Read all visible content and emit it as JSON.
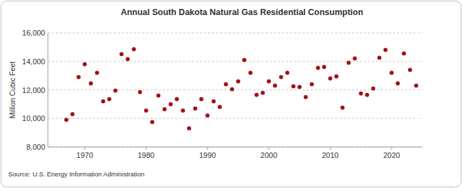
{
  "chart_data": {
    "type": "scatter",
    "title": "Annual South Dakota Natural Gas Residential Consumption",
    "y_label": "Million Cubic Feet",
    "source": "Source: U.S. Energy Information Administration",
    "x": [
      1967,
      1968,
      1969,
      1970,
      1971,
      1972,
      1973,
      1974,
      1975,
      1976,
      1977,
      1978,
      1979,
      1980,
      1981,
      1982,
      1983,
      1984,
      1985,
      1986,
      1987,
      1988,
      1989,
      1990,
      1991,
      1992,
      1993,
      1994,
      1995,
      1996,
      1997,
      1998,
      1999,
      2000,
      2001,
      2002,
      2003,
      2004,
      2005,
      2006,
      2007,
      2008,
      2009,
      2010,
      2011,
      2012,
      2013,
      2014,
      2015,
      2016,
      2017,
      2018,
      2019,
      2020,
      2021,
      2022,
      2023,
      2024
    ],
    "values": [
      9900,
      10300,
      12900,
      13800,
      12450,
      13200,
      11200,
      11350,
      11950,
      14500,
      14150,
      14850,
      11850,
      10550,
      9750,
      11600,
      10650,
      11000,
      11350,
      10550,
      9300,
      10700,
      11350,
      10200,
      11200,
      10800,
      12400,
      12050,
      12600,
      14100,
      13200,
      11650,
      11800,
      12600,
      12300,
      12900,
      13200,
      12250,
      12200,
      11500,
      12400,
      13550,
      13600,
      12800,
      12950,
      10750,
      13900,
      14200,
      11750,
      11650,
      12100,
      14250,
      14800,
      13200,
      12450,
      14550,
      13400,
      12300
    ],
    "color": "#a50f15",
    "marker": "circle",
    "xlim": [
      1964,
      2025
    ],
    "xticks": [
      1970,
      1980,
      1990,
      2000,
      2010,
      2020
    ],
    "ylim": [
      8000,
      16000
    ],
    "yticks": [
      {
        "value": 8000,
        "label": "8,000"
      },
      {
        "value": 10000,
        "label": "10,000"
      },
      {
        "value": 12000,
        "label": "12,000"
      },
      {
        "value": 14000,
        "label": "14,000"
      },
      {
        "value": 16000,
        "label": "16,000"
      }
    ],
    "grid": true
  }
}
